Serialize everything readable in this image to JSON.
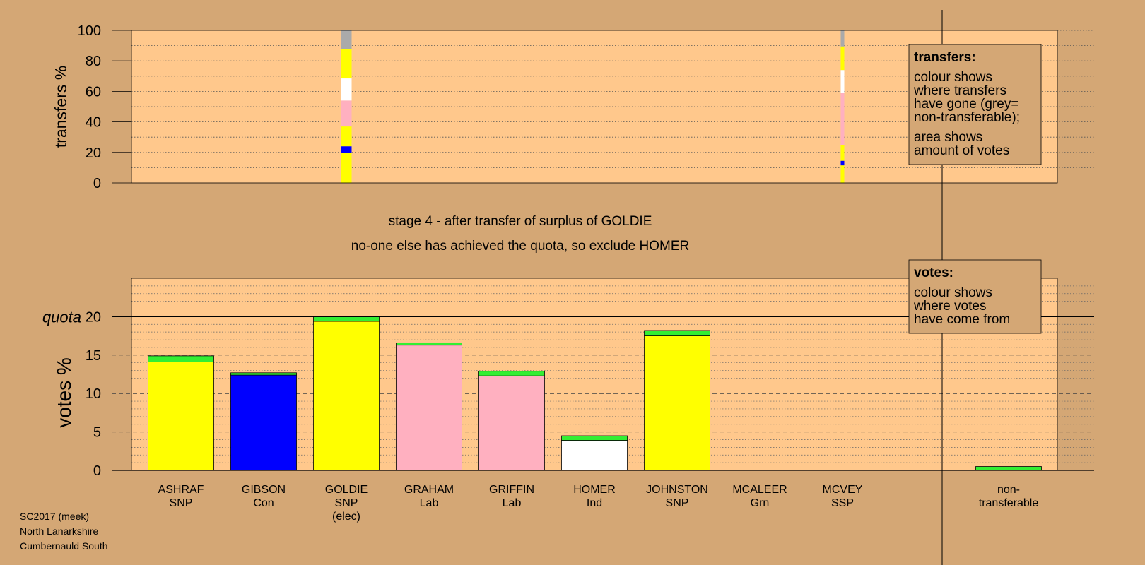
{
  "colors": {
    "background": "#d4a775",
    "plot_background": "#ffc88c",
    "non_transferable": "#aaaaaa",
    "SNP": "#ffff00",
    "Con": "#0000ff",
    "Lab": "#ffb0c0",
    "Ind": "#ffffff",
    "Grn": "#33ee33"
  },
  "stage": {
    "line1": "stage 4 - after transfer of surplus of GOLDIE",
    "line2": "no-one else has achieved the quota, so exclude HOMER"
  },
  "footer": {
    "line1": "SC2017 (meek)",
    "line2": "North Lanarkshire",
    "line3": "Cumbernauld South"
  },
  "legend_transfers": {
    "title": "transfers:",
    "lines": [
      "colour shows",
      "where transfers",
      "have gone (grey=",
      "non-transferable);",
      "area shows",
      "amount of votes"
    ]
  },
  "legend_votes": {
    "title": "votes:",
    "lines": [
      "colour shows",
      "where votes",
      "have come from"
    ]
  },
  "chart_data": [
    {
      "type": "bar",
      "ylabel": "transfers %",
      "ylim": [
        0,
        100
      ],
      "yticks": [
        0,
        20,
        40,
        60,
        80,
        100
      ],
      "transfer_columns": [
        {
          "candidate": "GOLDIE",
          "segments": [
            {
              "party": "SNP",
              "from": 0,
              "to": 19.5
            },
            {
              "party": "Con",
              "from": 19.5,
              "to": 24
            },
            {
              "party": "SNP",
              "from": 24,
              "to": 37
            },
            {
              "party": "Lab",
              "from": 37,
              "to": 53.5
            },
            {
              "party": "Lab",
              "from": 53.5,
              "to": 54
            },
            {
              "party": "Ind",
              "from": 54,
              "to": 68.5
            },
            {
              "party": "SNP",
              "from": 68.5,
              "to": 87.5
            },
            {
              "party": "non_transferable",
              "from": 87.5,
              "to": 100
            }
          ]
        },
        {
          "candidate": "MCVEY",
          "segments": [
            {
              "party": "SNP",
              "from": 0,
              "to": 11.5
            },
            {
              "party": "Con",
              "from": 11.5,
              "to": 14.5
            },
            {
              "party": "SNP",
              "from": 14.5,
              "to": 25
            },
            {
              "party": "Lab",
              "from": 25,
              "to": 59
            },
            {
              "party": "Ind",
              "from": 59,
              "to": 74
            },
            {
              "party": "SNP",
              "from": 74,
              "to": 89.5
            },
            {
              "party": "non_transferable",
              "from": 89.5,
              "to": 100
            }
          ]
        }
      ]
    },
    {
      "type": "bar",
      "ylabel": "votes %",
      "quota_label": "quota",
      "quota": 20,
      "ylim": [
        0,
        25
      ],
      "yticks": [
        0,
        5,
        10,
        15,
        20
      ],
      "categories": [
        {
          "name": "ASHRAF",
          "party": "SNP",
          "base": 14.1,
          "transfer": 0.8
        },
        {
          "name": "GIBSON",
          "party": "Con",
          "base": 12.4,
          "transfer": 0.3
        },
        {
          "name": "GOLDIE",
          "party": "SNP",
          "note": "(elec)",
          "base": 19.4,
          "transfer": 0.6
        },
        {
          "name": "GRAHAM",
          "party": "Lab",
          "base": 16.3,
          "transfer": 0.3
        },
        {
          "name": "GRIFFIN",
          "party": "Lab",
          "base": 12.3,
          "transfer": 0.6
        },
        {
          "name": "HOMER",
          "party": "Ind",
          "base": 3.9,
          "transfer": 0.6
        },
        {
          "name": "JOHNSTON",
          "party": "SNP",
          "base": 17.5,
          "transfer": 0.7
        },
        {
          "name": "MCALEER",
          "party": "Grn",
          "base": 0,
          "transfer": 0
        },
        {
          "name": "MCVEY",
          "party": "SSP",
          "base": 0,
          "transfer": 0
        }
      ],
      "non_transferable": {
        "label1": "non-",
        "label2": "transferable",
        "value": 0.5
      }
    }
  ]
}
